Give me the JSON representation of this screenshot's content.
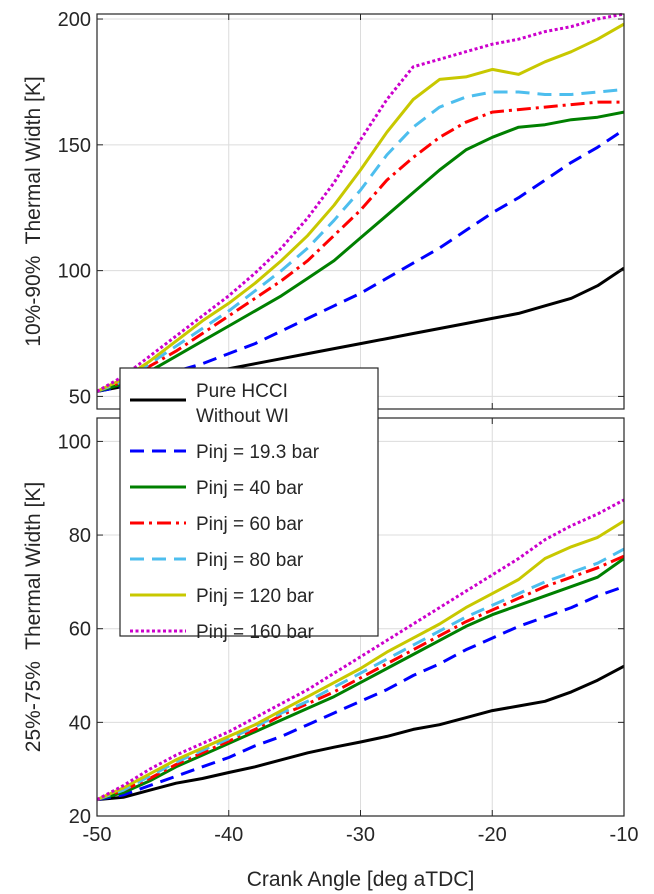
{
  "chart_data": [
    {
      "type": "line",
      "ylabel": "10%-90%  Thermal Width [K]",
      "xlabel": "",
      "xlim": [
        -50,
        -10
      ],
      "ylim": [
        45,
        202
      ],
      "xticks": [
        -50,
        -40,
        -30,
        -20,
        -10
      ],
      "xtick_labels_shown": false,
      "yticks": [
        50,
        100,
        150,
        200
      ],
      "grid": true,
      "series": [
        {
          "name": "Pure HCCI Without WI",
          "color": "#000000",
          "dash": "solid",
          "x": [
            -50,
            -48,
            -46,
            -44,
            -42,
            -40,
            -38,
            -36,
            -34,
            -32,
            -30,
            -28,
            -26,
            -24,
            -22,
            -20,
            -18,
            -16,
            -14,
            -12,
            -10
          ],
          "y": [
            52,
            54,
            56,
            57,
            59,
            61,
            63,
            65,
            67,
            69,
            71,
            73,
            75,
            77,
            79,
            81,
            83,
            86,
            89,
            94,
            101
          ]
        },
        {
          "name": "Pinj = 19.3 bar",
          "color": "#0000ff",
          "dash": "dashed",
          "x": [
            -50,
            -48,
            -46,
            -44,
            -42,
            -40,
            -38,
            -36,
            -34,
            -32,
            -30,
            -28,
            -26,
            -24,
            -22,
            -20,
            -18,
            -16,
            -14,
            -12,
            -10
          ],
          "y": [
            52,
            54,
            57,
            60,
            63,
            67,
            71,
            76,
            81,
            86,
            91,
            97,
            103,
            109,
            116,
            123,
            129,
            136,
            143,
            149,
            156
          ]
        },
        {
          "name": "Pinj = 40 bar",
          "color": "#008000",
          "dash": "solid",
          "x": [
            -50,
            -48,
            -46,
            -44,
            -42,
            -40,
            -38,
            -36,
            -34,
            -32,
            -30,
            -28,
            -26,
            -24,
            -22,
            -20,
            -18,
            -16,
            -14,
            -12,
            -10
          ],
          "y": [
            52,
            55,
            60,
            66,
            72,
            78,
            84,
            90,
            97,
            104,
            113,
            122,
            131,
            140,
            148,
            153,
            157,
            158,
            160,
            161,
            163
          ]
        },
        {
          "name": "Pinj = 60 bar",
          "color": "#ff0000",
          "dash": "dashdot",
          "x": [
            -50,
            -48,
            -46,
            -44,
            -42,
            -40,
            -38,
            -36,
            -34,
            -32,
            -30,
            -28,
            -26,
            -24,
            -22,
            -20,
            -18,
            -16,
            -14,
            -12,
            -10
          ],
          "y": [
            52,
            56,
            62,
            68,
            75,
            82,
            89,
            96,
            104,
            114,
            124,
            136,
            145,
            153,
            159,
            163,
            164,
            165,
            166,
            167,
            167
          ]
        },
        {
          "name": "Pinj = 80 bar",
          "color": "#4dbeee",
          "dash": "dashed",
          "x": [
            -50,
            -48,
            -46,
            -44,
            -42,
            -40,
            -38,
            -36,
            -34,
            -32,
            -30,
            -28,
            -26,
            -24,
            -22,
            -20,
            -18,
            -16,
            -14,
            -12,
            -10
          ],
          "y": [
            52,
            56,
            63,
            70,
            77,
            84,
            92,
            100,
            109,
            120,
            132,
            146,
            157,
            165,
            169,
            171,
            171,
            170,
            170,
            171,
            172
          ]
        },
        {
          "name": "Pinj = 120 bar",
          "color": "#c8c800",
          "dash": "solid",
          "x": [
            -50,
            -48,
            -46,
            -44,
            -42,
            -40,
            -38,
            -36,
            -34,
            -32,
            -30,
            -28,
            -26,
            -24,
            -22,
            -20,
            -18,
            -16,
            -14,
            -12,
            -10
          ],
          "y": [
            52,
            57,
            64,
            72,
            80,
            87,
            95,
            104,
            114,
            126,
            140,
            155,
            168,
            176,
            177,
            180,
            178,
            183,
            187,
            192,
            198
          ]
        },
        {
          "name": "Pinj = 160 bar",
          "color": "#cc00cc",
          "dash": "dotted",
          "x": [
            -50,
            -48,
            -46,
            -44,
            -42,
            -40,
            -38,
            -36,
            -34,
            -32,
            -30,
            -28,
            -26,
            -24,
            -22,
            -20,
            -18,
            -16,
            -14,
            -12,
            -10
          ],
          "y": [
            52,
            58,
            66,
            74,
            82,
            90,
            99,
            109,
            121,
            135,
            152,
            168,
            181,
            184,
            187,
            190,
            192,
            195,
            197,
            200,
            202
          ]
        }
      ]
    },
    {
      "type": "line",
      "ylabel": "25%-75%  Thermal Width [K]",
      "xlabel": "Crank Angle [deg aTDC]",
      "xlim": [
        -50,
        -10
      ],
      "ylim": [
        20,
        105
      ],
      "xticks": [
        -50,
        -40,
        -30,
        -20,
        -10
      ],
      "yticks": [
        20,
        40,
        60,
        80,
        100
      ],
      "grid": true,
      "series": [
        {
          "name": "Pure HCCI Without WI",
          "color": "#000000",
          "dash": "solid",
          "x": [
            -50,
            -48,
            -46,
            -44,
            -42,
            -40,
            -38,
            -36,
            -34,
            -32,
            -30,
            -28,
            -26,
            -24,
            -22,
            -20,
            -18,
            -16,
            -14,
            -12,
            -10
          ],
          "y": [
            23.5,
            24,
            25.5,
            27,
            28,
            29.3,
            30.5,
            32,
            33.5,
            34.7,
            35.8,
            37,
            38.5,
            39.5,
            41,
            42.5,
            43.5,
            44.5,
            46.5,
            49,
            52
          ]
        },
        {
          "name": "Pinj = 19.3 bar",
          "color": "#0000ff",
          "dash": "dashed",
          "x": [
            -50,
            -48,
            -46,
            -44,
            -42,
            -40,
            -38,
            -36,
            -34,
            -32,
            -30,
            -28,
            -26,
            -24,
            -22,
            -20,
            -18,
            -16,
            -14,
            -12,
            -10
          ],
          "y": [
            23.5,
            24.5,
            26.5,
            28.5,
            30.5,
            32.5,
            35,
            37,
            39.5,
            42,
            44.5,
            47,
            50,
            52.5,
            55.5,
            58,
            60.5,
            62.5,
            64.5,
            67,
            69
          ]
        },
        {
          "name": "Pinj = 40 bar",
          "color": "#008000",
          "dash": "solid",
          "x": [
            -50,
            -48,
            -46,
            -44,
            -42,
            -40,
            -38,
            -36,
            -34,
            -32,
            -30,
            -28,
            -26,
            -24,
            -22,
            -20,
            -18,
            -16,
            -14,
            -12,
            -10
          ],
          "y": [
            23.5,
            25,
            27.5,
            30.5,
            33,
            35.5,
            38,
            40.5,
            43,
            45.5,
            48.5,
            51.5,
            54.5,
            57.5,
            60.5,
            63,
            65,
            67,
            69,
            71,
            75
          ]
        },
        {
          "name": "Pinj = 60 bar",
          "color": "#ff0000",
          "dash": "dashdot",
          "x": [
            -50,
            -48,
            -46,
            -44,
            -42,
            -40,
            -38,
            -36,
            -34,
            -32,
            -30,
            -28,
            -26,
            -24,
            -22,
            -20,
            -18,
            -16,
            -14,
            -12,
            -10
          ],
          "y": [
            23.5,
            25.5,
            28,
            31,
            33.5,
            36,
            38.5,
            41.5,
            44,
            46.5,
            49.5,
            52.5,
            55.5,
            58.5,
            61.5,
            64,
            66.5,
            69,
            71,
            73,
            75.5
          ]
        },
        {
          "name": "Pinj = 80 bar",
          "color": "#4dbeee",
          "dash": "dashed",
          "x": [
            -50,
            -48,
            -46,
            -44,
            -42,
            -40,
            -38,
            -36,
            -34,
            -32,
            -30,
            -28,
            -26,
            -24,
            -22,
            -20,
            -18,
            -16,
            -14,
            -12,
            -10
          ],
          "y": [
            23.5,
            25.5,
            28.5,
            31.5,
            34,
            36.5,
            39,
            42,
            44.5,
            47.5,
            50.5,
            53.5,
            56.5,
            59.5,
            62.5,
            65,
            67.5,
            70,
            72,
            74,
            77
          ]
        },
        {
          "name": "Pinj = 120 bar",
          "color": "#c8c800",
          "dash": "solid",
          "x": [
            -50,
            -48,
            -46,
            -44,
            -42,
            -40,
            -38,
            -36,
            -34,
            -32,
            -30,
            -28,
            -26,
            -24,
            -22,
            -20,
            -18,
            -16,
            -14,
            -12,
            -10
          ],
          "y": [
            23.5,
            26,
            29,
            32,
            34.5,
            37,
            39.5,
            42.5,
            45.5,
            48.5,
            51.5,
            55,
            58,
            61,
            64.5,
            67.5,
            70.5,
            75,
            77.5,
            79.5,
            83
          ]
        },
        {
          "name": "Pinj = 160 bar",
          "color": "#cc00cc",
          "dash": "dotted",
          "x": [
            -50,
            -48,
            -46,
            -44,
            -42,
            -40,
            -38,
            -36,
            -34,
            -32,
            -30,
            -28,
            -26,
            -24,
            -22,
            -20,
            -18,
            -16,
            -14,
            -12,
            -10
          ],
          "y": [
            23.5,
            26.5,
            30,
            33,
            35.5,
            38,
            41,
            44,
            47,
            50.5,
            54,
            57.5,
            61,
            64.5,
            68,
            71.5,
            75,
            79,
            82,
            84.5,
            87.5
          ]
        }
      ]
    }
  ],
  "legend": {
    "placement": "upper-left of lower plot",
    "entries": [
      {
        "label_lines": [
          "Pure HCCI",
          "Without WI"
        ],
        "color": "#000000",
        "dash": "solid"
      },
      {
        "label_lines": [
          "Pinj = 19.3 bar"
        ],
        "color": "#0000ff",
        "dash": "dashed"
      },
      {
        "label_lines": [
          "Pinj = 40 bar"
        ],
        "color": "#008000",
        "dash": "solid"
      },
      {
        "label_lines": [
          "Pinj = 60 bar"
        ],
        "color": "#ff0000",
        "dash": "dashdot"
      },
      {
        "label_lines": [
          "Pinj = 80 bar"
        ],
        "color": "#4dbeee",
        "dash": "dashed"
      },
      {
        "label_lines": [
          "Pinj = 120 bar"
        ],
        "color": "#c8c800",
        "dash": "solid"
      },
      {
        "label_lines": [
          "Pinj = 160 bar"
        ],
        "color": "#cc00cc",
        "dash": "dotted"
      }
    ]
  }
}
